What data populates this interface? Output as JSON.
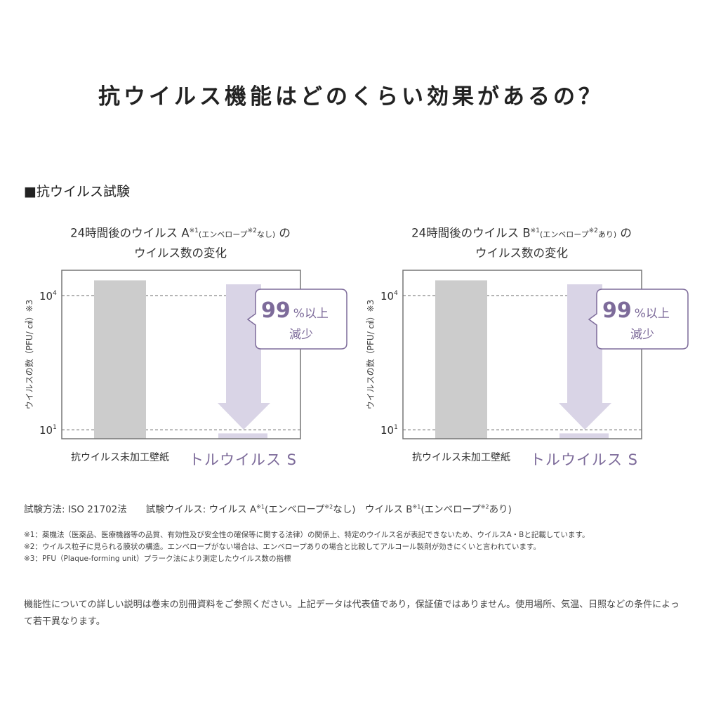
{
  "title": "抗ウイルス機能はどのくらい効果があるの？",
  "section": "■抗ウイルス試験",
  "chart_data": [
    {
      "type": "bar",
      "title_parts": {
        "pre": "24時間後のウイルス A",
        "sup1": "※1",
        "paren_pre": "(エンベロープ",
        "sup2": "※2",
        "paren_post": "なし)",
        "post": " の",
        "line2": "ウイルス数の変化"
      },
      "ylabel": "ウイルスの数（PFU/ ㎠）※3",
      "yscale": "log",
      "ylim": [
        6.3,
        37000
      ],
      "yticks": [
        {
          "value": 10,
          "label": "10",
          "exp": "1"
        },
        {
          "value": 10000,
          "label": "10",
          "exp": "4"
        }
      ],
      "grid": "dashed at ticks",
      "categories": [
        "抗ウイルス未加工壁紙",
        "トルウイルス S"
      ],
      "values": [
        22000,
        8.3
      ],
      "colors": [
        "#cccccc",
        "#d9d4e6"
      ],
      "callout": {
        "big": "99",
        "small": "%以上",
        "line2": "減少"
      }
    },
    {
      "type": "bar",
      "title_parts": {
        "pre": "24時間後のウイルス B",
        "sup1": "※1",
        "paren_pre": "(エンベロープ",
        "sup2": "※2",
        "paren_post": "あり)",
        "post": " の",
        "line2": "ウイルス数の変化"
      },
      "ylabel": "ウイルスの数（PFU/ ㎠）※3",
      "yscale": "log",
      "ylim": [
        6.3,
        37000
      ],
      "yticks": [
        {
          "value": 10,
          "label": "10",
          "exp": "1"
        },
        {
          "value": 10000,
          "label": "10",
          "exp": "4"
        }
      ],
      "grid": "dashed at ticks",
      "categories": [
        "抗ウイルス未加工壁紙",
        "トルウイルス S"
      ],
      "values": [
        22000,
        8.3
      ],
      "colors": [
        "#cccccc",
        "#d9d4e6"
      ],
      "callout": {
        "big": "99",
        "small": "%以上",
        "line2": "減少"
      }
    }
  ],
  "accent": "#7d6b9a",
  "method": {
    "a": "試験方法: ISO 21702法",
    "b": "試験ウイルス: ウイルス A",
    "s1": "※1",
    "c": "(エンベロープ",
    "s2": "※2",
    "d": "なし)　ウイルス B",
    "s3": "※1",
    "e": "(エンベロープ",
    "s4": "※2",
    "f": "あり)"
  },
  "notes": [
    "※1：薬機法（医薬品、医療機器等の品質、有効性及び安全性の確保等に関する法律）の関係上、特定のウイルス名が表記できないため、ウイルスA・Bと記載しています。",
    "※2：ウイルス粒子に見られる膜状の構造。エンベロープがない場合は、エンベロープありの場合と比較してアルコール製剤が効きにくいと言われています。",
    "※3：PFU（Plaque-forming unit）プラーク法により測定したウイルス数の指標"
  ],
  "footer": "機能性についての詳しい説明は巻末の別冊資料をご参照ください。上記データは代表値であり，保証値ではありません。使用場所、気温、日照などの条件によって若干異なります。"
}
